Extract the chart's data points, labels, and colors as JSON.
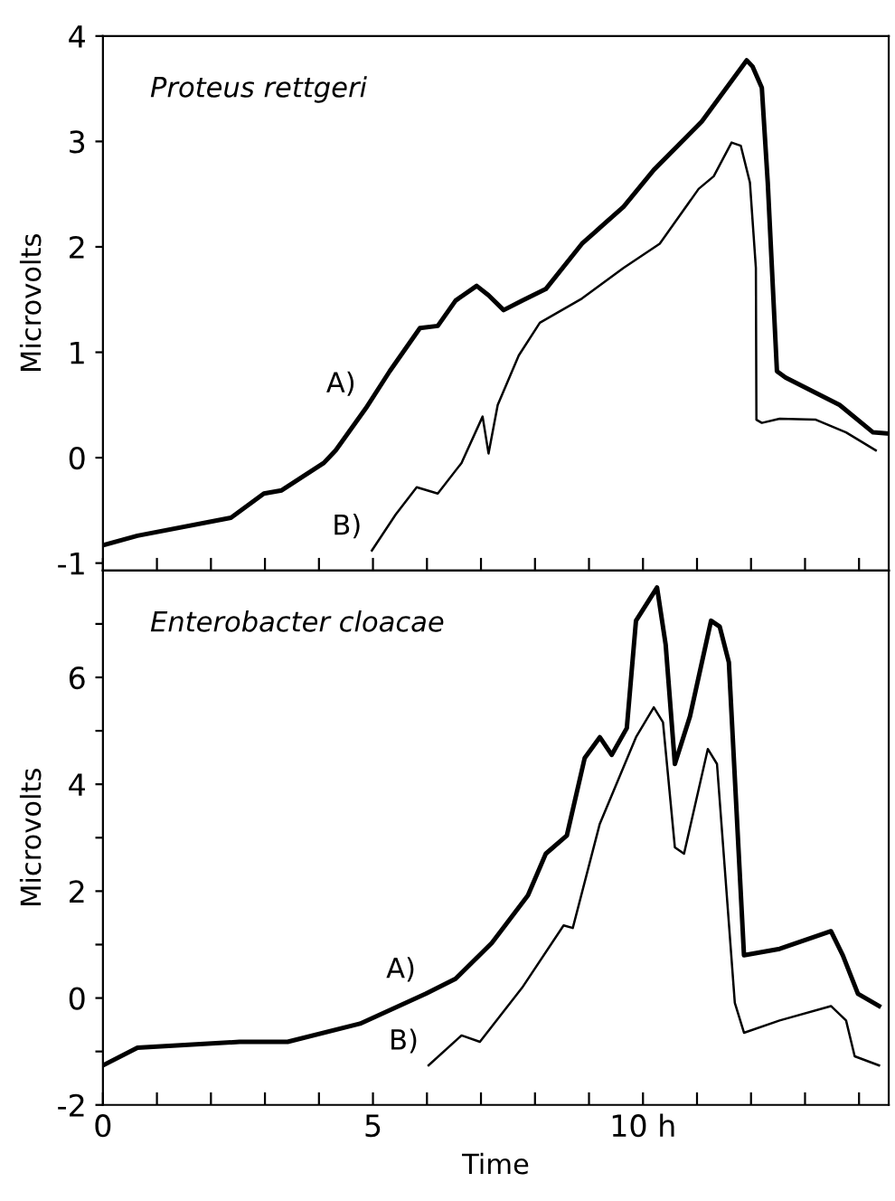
{
  "chart_data": [
    {
      "type": "line",
      "title": "Proteus rettgeri",
      "ylabel": "Microvolts",
      "xlim": [
        0,
        14.55
      ],
      "ylim": [
        -1.07,
        4
      ],
      "xticks": [
        0,
        1,
        2,
        3,
        4,
        5,
        6,
        7,
        8,
        9,
        10,
        11,
        12,
        13,
        14
      ],
      "yticks": [
        -1,
        0,
        1,
        2,
        3,
        4
      ],
      "tick_labels": "y",
      "grid": false,
      "legend": false,
      "series": [
        {
          "color": "#000000",
          "x": [
            0,
            0.64,
            2.37,
            2.98,
            3.31,
            4.09,
            4.31,
            4.87,
            5.31,
            5.87,
            6.2,
            6.53,
            6.92,
            7.14,
            7.42,
            7.76,
            8.2,
            8.87,
            9.2,
            9.64,
            10.2,
            11.09,
            11.92,
            12.03,
            12.2,
            12.31,
            12.48,
            12.64,
            13.64,
            14.26,
            14.53
          ],
          "values": [
            -0.83,
            -0.74,
            -0.57,
            -0.34,
            -0.31,
            -0.05,
            0.07,
            0.47,
            0.82,
            1.23,
            1.25,
            1.49,
            1.63,
            1.54,
            1.4,
            1.49,
            1.6,
            2.03,
            2.18,
            2.38,
            2.73,
            3.19,
            3.77,
            3.71,
            3.51,
            2.61,
            0.82,
            0.76,
            0.5,
            0.24,
            0.23
          ]
        },
        {
          "color": "#000000",
          "x": [
            4.98,
            5.42,
            5.81,
            6.2,
            6.64,
            7.03,
            7.14,
            7.31,
            7.7,
            8.09,
            8.87,
            9.64,
            10.31,
            11.03,
            11.31,
            11.64,
            11.81,
            11.98,
            12.09,
            12.1,
            12.2,
            12.53,
            13.2,
            13.76,
            14.31
          ],
          "values": [
            -0.88,
            -0.54,
            -0.28,
            -0.34,
            -0.05,
            0.39,
            0.04,
            0.5,
            0.97,
            1.28,
            1.51,
            1.8,
            2.03,
            2.55,
            2.67,
            2.99,
            2.96,
            2.61,
            1.8,
            0.36,
            0.33,
            0.37,
            0.36,
            0.24,
            0.07
          ]
        }
      ],
      "annotations": [
        {
          "text": "A)",
          "x": 4.87,
          "y": 0.47
        },
        {
          "text": "B)",
          "x": 4.98,
          "y": -0.88
        }
      ]
    },
    {
      "type": "line",
      "title": "Enterobacter cloacae",
      "xlabel": "Time",
      "ylabel": "Microvolts",
      "xlim": [
        0,
        14.55
      ],
      "ylim": [
        -2,
        8
      ],
      "xticks": [
        0,
        {
          "value": 1,
          "label": null
        },
        {
          "value": 2,
          "label": null
        },
        {
          "value": 3,
          "label": null
        },
        {
          "value": 4,
          "label": null
        },
        5,
        {
          "value": 6,
          "label": null
        },
        {
          "value": 7,
          "label": null
        },
        {
          "value": 8,
          "label": null
        },
        {
          "value": 9,
          "label": null
        },
        {
          "value": 10,
          "label": "10 h"
        },
        {
          "value": 11,
          "label": null
        },
        {
          "value": 12,
          "label": null
        },
        {
          "value": 13,
          "label": null
        },
        {
          "value": 14,
          "label": null
        }
      ],
      "yticks": [
        -2,
        {
          "value": -1,
          "label": null
        },
        0,
        {
          "value": 1,
          "label": null
        },
        2,
        {
          "value": 3,
          "label": null
        },
        4,
        {
          "value": 5,
          "label": null
        },
        6,
        {
          "value": 7,
          "label": null
        }
      ],
      "grid": false,
      "legend": false,
      "series": [
        {
          "color": "#000000",
          "x": [
            0,
            0.64,
            2.53,
            3.42,
            4.76,
            5.98,
            6.53,
            7.2,
            7.87,
            8.2,
            8.59,
            8.92,
            9.2,
            9.42,
            9.7,
            9.87,
            10.26,
            10.42,
            10.59,
            10.87,
            11.26,
            11.42,
            11.59,
            11.87,
            12.53,
            13.48,
            13.7,
            13.98,
            14.37
          ],
          "values": [
            -1.26,
            -0.93,
            -0.82,
            -0.82,
            -0.48,
            0.08,
            0.36,
            1.03,
            1.92,
            2.7,
            3.04,
            4.49,
            4.88,
            4.55,
            5.05,
            7.06,
            7.68,
            6.61,
            4.38,
            5.27,
            7.06,
            6.95,
            6.28,
            0.8,
            0.92,
            1.25,
            0.8,
            0.08,
            -0.15
          ]
        },
        {
          "color": "#000000",
          "x": [
            6.03,
            6.64,
            6.98,
            7.76,
            8.53,
            8.7,
            9.2,
            9.87,
            10.2,
            10.37,
            10.59,
            10.76,
            11.2,
            11.37,
            11.7,
            11.87,
            12.53,
            13.48,
            13.76,
            13.92,
            14.37
          ],
          "values": [
            -1.26,
            -0.7,
            -0.82,
            0.19,
            1.36,
            1.31,
            3.26,
            4.88,
            5.44,
            5.16,
            2.82,
            2.7,
            4.66,
            4.38,
            -0.09,
            -0.65,
            -0.42,
            -0.15,
            -0.42,
            -1.09,
            -1.26
          ]
        }
      ],
      "annotations": [
        {
          "text": "A)",
          "x": 5.98,
          "y": 0.08
        },
        {
          "text": "B)",
          "x": 6.03,
          "y": -1.26
        }
      ]
    }
  ]
}
